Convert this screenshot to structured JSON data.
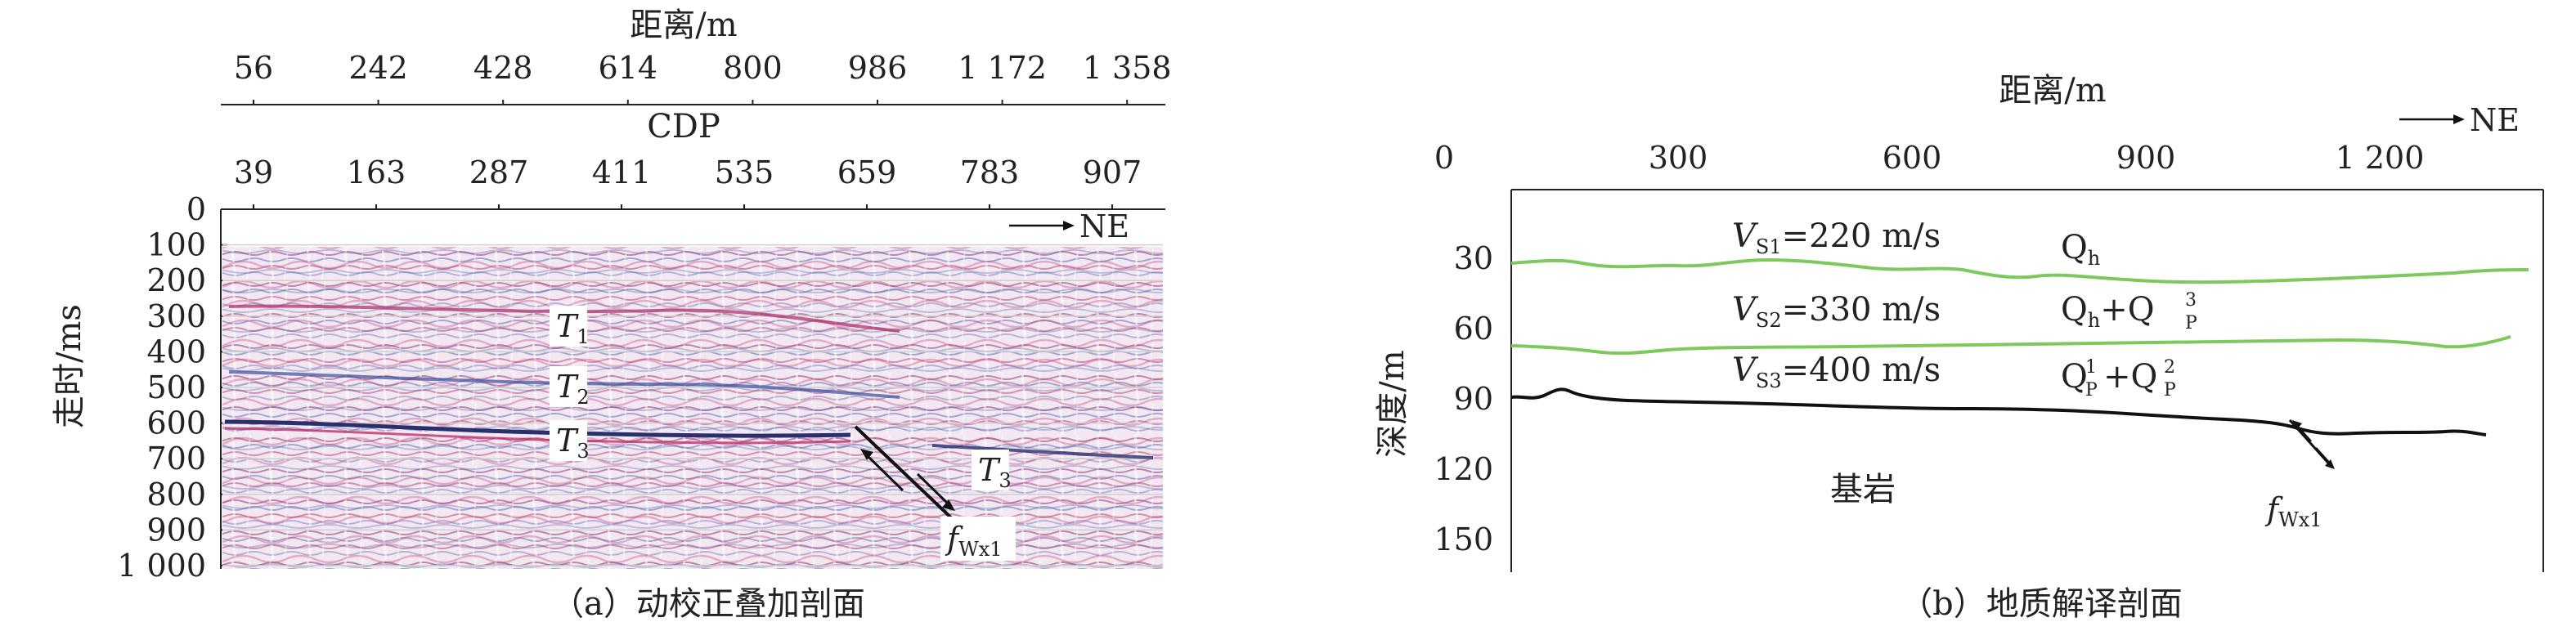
{
  "panel_a": {
    "top_axis_title": "距离/m",
    "distance_ticks": [
      "56",
      "242",
      "428",
      "614",
      "800",
      "986",
      "1 172",
      "1 358"
    ],
    "cdp_title": "CDP",
    "cdp_ticks": [
      "39",
      "163",
      "287",
      "411",
      "535",
      "659",
      "783",
      "907"
    ],
    "y_title": "走时/ms",
    "y_ticks": [
      "0",
      "100",
      "200",
      "300",
      "400",
      "500",
      "600",
      "700",
      "800",
      "900",
      "1 000"
    ],
    "direction_label": "NE",
    "horizons": [
      {
        "label": "T",
        "sub": "1"
      },
      {
        "label": "T",
        "sub": "2"
      },
      {
        "label": "T",
        "sub": "3"
      },
      {
        "label": "T",
        "sub": "3"
      }
    ],
    "fault": {
      "main": "f",
      "sub": "Wx1"
    },
    "caption": "（a）动校正叠加剖面"
  },
  "panel_b": {
    "x_title": "距离/m",
    "x_ticks": [
      "0",
      "300",
      "600",
      "900",
      "1 200"
    ],
    "y_title": "深度/m",
    "y_ticks": [
      "30",
      "60",
      "90",
      "120",
      "150"
    ],
    "direction_label": "NE",
    "layers": [
      {
        "v_main": "V",
        "v_sub": "S1",
        "v_value": "=220 m/s",
        "strat": "Q",
        "strat_sub": "h",
        "strat_extra": ""
      },
      {
        "v_main": "V",
        "v_sub": "S2",
        "v_value": "=330 m/s",
        "strat": "Q",
        "strat_sub": "h",
        "strat_extra": "+Q"
      },
      {
        "v_main": "V",
        "v_sub": "S3",
        "v_value": "=400 m/s",
        "strat": "Q",
        "strat_sub": "",
        "strat_extra": "+Q"
      }
    ],
    "strat_marks": {
      "p_sub": "P",
      "sup_3": "3",
      "sup_1": "1",
      "sup_2": "2"
    },
    "bedrock_label": "基岩",
    "fault": {
      "main": "f",
      "sub": "Wx1"
    },
    "caption": "（b）地质解译剖面",
    "colors": {
      "interface": "#7dc95e",
      "bedrock_line": "#111111"
    }
  }
}
